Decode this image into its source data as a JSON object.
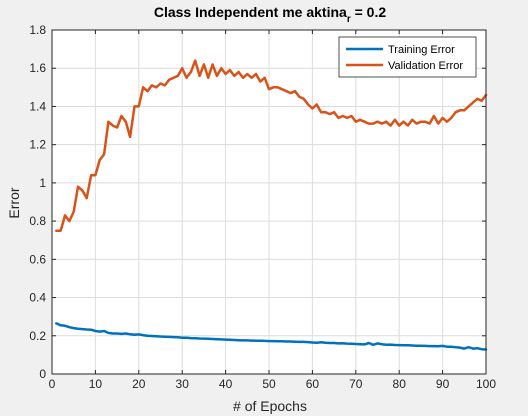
{
  "chart_data": {
    "type": "line",
    "title": "Class Independent me aktina",
    "title_sub": "r",
    "title_tail": " = 0.2",
    "xlabel": "# of Epochs",
    "ylabel": "Error",
    "xlim": [
      0,
      100
    ],
    "ylim": [
      0,
      1.8
    ],
    "xticks": [
      0,
      10,
      20,
      30,
      40,
      50,
      60,
      70,
      80,
      90,
      100
    ],
    "yticks": [
      0,
      0.2,
      0.4,
      0.6,
      0.8,
      1,
      1.2,
      1.4,
      1.6,
      1.8
    ],
    "grid": true,
    "legend_position": "top-right",
    "series": [
      {
        "name": "Training Error",
        "color": "#0072bd",
        "x": [
          1,
          2,
          3,
          4,
          5,
          6,
          7,
          8,
          9,
          10,
          11,
          12,
          13,
          14,
          15,
          16,
          17,
          18,
          19,
          20,
          21,
          22,
          23,
          24,
          25,
          26,
          27,
          28,
          29,
          30,
          31,
          32,
          33,
          34,
          35,
          36,
          37,
          38,
          39,
          40,
          41,
          42,
          43,
          44,
          45,
          46,
          47,
          48,
          49,
          50,
          51,
          52,
          53,
          54,
          55,
          56,
          57,
          58,
          59,
          60,
          61,
          62,
          63,
          64,
          65,
          66,
          67,
          68,
          69,
          70,
          71,
          72,
          73,
          74,
          75,
          76,
          77,
          78,
          79,
          80,
          81,
          82,
          83,
          84,
          85,
          86,
          87,
          88,
          89,
          90,
          91,
          92,
          93,
          94,
          95,
          96,
          97,
          98,
          99,
          100
        ],
        "y": [
          0.265,
          0.255,
          0.252,
          0.245,
          0.24,
          0.237,
          0.235,
          0.233,
          0.232,
          0.225,
          0.222,
          0.225,
          0.215,
          0.212,
          0.212,
          0.21,
          0.212,
          0.208,
          0.205,
          0.207,
          0.203,
          0.2,
          0.199,
          0.198,
          0.196,
          0.195,
          0.194,
          0.193,
          0.192,
          0.19,
          0.19,
          0.188,
          0.187,
          0.186,
          0.185,
          0.184,
          0.183,
          0.182,
          0.181,
          0.18,
          0.179,
          0.178,
          0.177,
          0.176,
          0.176,
          0.175,
          0.174,
          0.174,
          0.173,
          0.172,
          0.172,
          0.171,
          0.171,
          0.17,
          0.17,
          0.169,
          0.168,
          0.168,
          0.167,
          0.165,
          0.163,
          0.166,
          0.163,
          0.162,
          0.162,
          0.16,
          0.161,
          0.159,
          0.158,
          0.157,
          0.156,
          0.155,
          0.162,
          0.153,
          0.16,
          0.156,
          0.153,
          0.154,
          0.152,
          0.151,
          0.15,
          0.15,
          0.149,
          0.148,
          0.148,
          0.147,
          0.146,
          0.146,
          0.145,
          0.147,
          0.143,
          0.143,
          0.14,
          0.138,
          0.133,
          0.14,
          0.133,
          0.135,
          0.13,
          0.128
        ]
      },
      {
        "name": "Validation Error",
        "color": "#d95319",
        "x": [
          1,
          2,
          3,
          4,
          5,
          6,
          7,
          8,
          9,
          10,
          11,
          12,
          13,
          14,
          15,
          16,
          17,
          18,
          19,
          20,
          21,
          22,
          23,
          24,
          25,
          26,
          27,
          28,
          29,
          30,
          31,
          32,
          33,
          34,
          35,
          36,
          37,
          38,
          39,
          40,
          41,
          42,
          43,
          44,
          45,
          46,
          47,
          48,
          49,
          50,
          51,
          52,
          53,
          54,
          55,
          56,
          57,
          58,
          59,
          60,
          61,
          62,
          63,
          64,
          65,
          66,
          67,
          68,
          69,
          70,
          71,
          72,
          73,
          74,
          75,
          76,
          77,
          78,
          79,
          80,
          81,
          82,
          83,
          84,
          85,
          86,
          87,
          88,
          89,
          90,
          91,
          92,
          93,
          94,
          95,
          96,
          97,
          98,
          99,
          100
        ],
        "y": [
          0.75,
          0.75,
          0.83,
          0.8,
          0.85,
          0.98,
          0.96,
          0.92,
          1.04,
          1.04,
          1.12,
          1.15,
          1.32,
          1.3,
          1.29,
          1.35,
          1.32,
          1.24,
          1.4,
          1.4,
          1.5,
          1.48,
          1.51,
          1.5,
          1.52,
          1.51,
          1.54,
          1.55,
          1.56,
          1.6,
          1.55,
          1.58,
          1.64,
          1.56,
          1.62,
          1.55,
          1.62,
          1.56,
          1.6,
          1.57,
          1.59,
          1.56,
          1.58,
          1.55,
          1.57,
          1.55,
          1.57,
          1.53,
          1.55,
          1.49,
          1.5,
          1.5,
          1.49,
          1.48,
          1.47,
          1.48,
          1.45,
          1.44,
          1.41,
          1.39,
          1.41,
          1.37,
          1.37,
          1.36,
          1.37,
          1.34,
          1.35,
          1.34,
          1.35,
          1.32,
          1.33,
          1.32,
          1.31,
          1.31,
          1.32,
          1.31,
          1.32,
          1.3,
          1.33,
          1.3,
          1.32,
          1.3,
          1.33,
          1.31,
          1.32,
          1.32,
          1.31,
          1.35,
          1.31,
          1.34,
          1.32,
          1.34,
          1.37,
          1.38,
          1.38,
          1.4,
          1.42,
          1.44,
          1.43,
          1.46
        ]
      }
    ]
  }
}
